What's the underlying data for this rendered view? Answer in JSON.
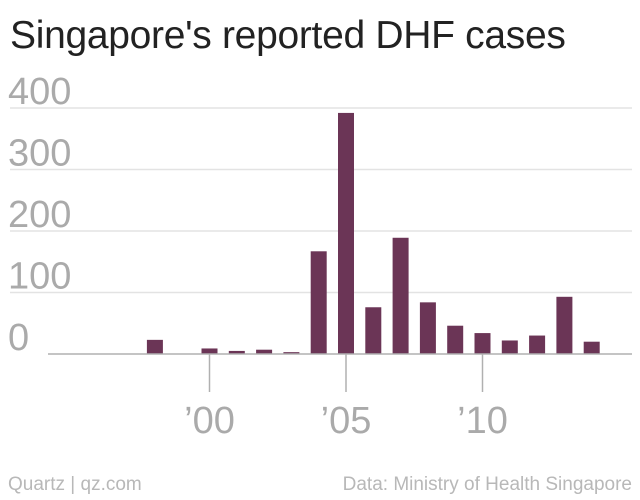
{
  "colors": {
    "bar": "#6b3556",
    "grid": "#e3e3e3",
    "axis": "#b0b0b0",
    "tick_text": "#aaaaaa"
  },
  "footer": {
    "left": "Quartz | qz.com",
    "right": "Data: Ministry of Health Singapore"
  },
  "chart_data": {
    "type": "bar",
    "title": "Singapore's reported DHF cases",
    "xlabel": "",
    "ylabel": "",
    "ylim": [
      0,
      400
    ],
    "yticks": [
      0,
      100,
      200,
      300,
      400
    ],
    "xticks": [
      {
        "year": 2000,
        "label": "’00"
      },
      {
        "year": 2005,
        "label": "’05"
      },
      {
        "year": 2010,
        "label": "’10"
      }
    ],
    "xlim": [
      1995,
      2015
    ],
    "grid": true,
    "categories": [
      1998,
      1999,
      2000,
      2001,
      2002,
      2003,
      2004,
      2005,
      2006,
      2007,
      2008,
      2009,
      2010,
      2011,
      2012,
      2013,
      2014
    ],
    "values": [
      23,
      0,
      9,
      5,
      7,
      3,
      167,
      392,
      76,
      189,
      84,
      46,
      34,
      22,
      30,
      93,
      20
    ]
  }
}
